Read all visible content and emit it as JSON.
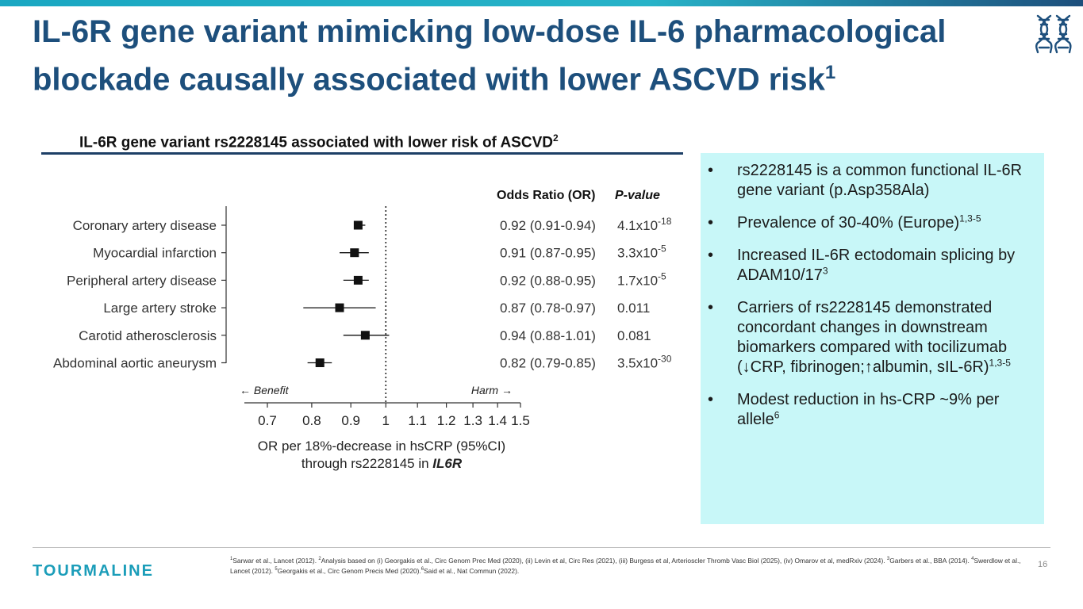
{
  "slide": {
    "title_main": "IL-6R gene variant mimicking low-dose IL-6 pharmacological blockade causally associated with lower ASCVD risk",
    "title_sup": "1",
    "dna_icon": "dna-helix-icon",
    "accent_color": "#1d4f7c",
    "bar_color": "#1aa7c2",
    "panel_color": "#c8f7f8",
    "page_number": "16"
  },
  "chart_heading": {
    "text": "IL-6R gene variant rs2228145 associated with lower risk of ASCVD",
    "sup": "2"
  },
  "chart_data": {
    "type": "forest",
    "col_or_header": "Odds Ratio (OR)",
    "col_p_header": "P-value",
    "rows": [
      {
        "label": "Coronary artery disease",
        "or": 0.92,
        "lo": 0.91,
        "hi": 0.94,
        "or_text": "0.92 (0.91-0.94)",
        "p_base": "4.1x10",
        "p_exp": "-18"
      },
      {
        "label": "Myocardial infarction",
        "or": 0.91,
        "lo": 0.87,
        "hi": 0.95,
        "or_text": "0.91 (0.87-0.95)",
        "p_base": "3.3x10",
        "p_exp": "-5"
      },
      {
        "label": "Peripheral artery disease",
        "or": 0.92,
        "lo": 0.88,
        "hi": 0.95,
        "or_text": "0.92 (0.88-0.95)",
        "p_base": "1.7x10",
        "p_exp": "-5"
      },
      {
        "label": "Large artery stroke",
        "or": 0.87,
        "lo": 0.78,
        "hi": 0.97,
        "or_text": "0.87 (0.78-0.97)",
        "p_base": "0.011",
        "p_exp": ""
      },
      {
        "label": "Carotid atherosclerosis",
        "or": 0.94,
        "lo": 0.88,
        "hi": 1.01,
        "or_text": "0.94 (0.88-1.01)",
        "p_base": "0.081",
        "p_exp": ""
      },
      {
        "label": "Abdominal aortic aneurysm",
        "or": 0.82,
        "lo": 0.79,
        "hi": 0.85,
        "or_text": "0.82 (0.79-0.85)",
        "p_base": "3.5x10",
        "p_exp": "-30"
      }
    ],
    "x_ticks": [
      0.7,
      0.8,
      0.9,
      1,
      1.1,
      1.2,
      1.3,
      1.4,
      1.5
    ],
    "x_tick_labels": [
      "0.7",
      "0.8",
      "0.9",
      "1",
      "1.1",
      "1.2",
      "1.3",
      "1.4",
      "1.5"
    ],
    "xlim": [
      0.7,
      1.5
    ],
    "x_scale": "log",
    "reference_line": 1,
    "benefit_label": "Benefit",
    "harm_label": "Harm",
    "xlabel_line1": "OR per 18%-decrease in hsCRP (95%CI)",
    "xlabel_line2_prefix": "through rs2228145 in ",
    "xlabel_line2_gene": "IL6R"
  },
  "bullets": [
    {
      "text": "rs2228145 is a common functional IL-6R gene variant (p.Asp358Ala)",
      "sup": ""
    },
    {
      "text": "Prevalence of 30-40% (Europe)",
      "sup": "1,3-5"
    },
    {
      "text": "Increased IL-6R ectodomain splicing by ADAM10/17",
      "sup": "3"
    },
    {
      "text": "Carriers of rs2228145 demonstrated concordant changes in downstream biomarkers compared with tocilizumab (↓CRP, fibrinogen;↑albumin, sIL-6R)",
      "sup": "1,3-5"
    },
    {
      "text": "Modest reduction in hs-CRP ~9% per allele",
      "sup": "6"
    }
  ],
  "bullet_symbol": "•",
  "footer": {
    "logo_text": "TOURMALINE",
    "refs": [
      {
        "sup": "1",
        "text": "Sarwar et al., Lancet (2012). "
      },
      {
        "sup": "2",
        "text": "Analysis based on (i) Georgakis et al., Circ Genom Prec Med (2020), (ii) Levin et al,  Circ Res (2021), (iii) Burgess et al, Arterioscler Thromb Vasc Biol (2025), (iv) Omarov et al, medRxiv (2024). "
      },
      {
        "sup": "3",
        "text": "Garbers et al., BBA (2014). "
      },
      {
        "sup": "4",
        "text": "Swerdlow et al., Lancet (2012). "
      },
      {
        "sup": "5",
        "text": "Georgakis et al., Circ Genom Precis Med (2020)."
      },
      {
        "sup": "6",
        "text": "Said et al., Nat Commun (2022)."
      }
    ]
  }
}
